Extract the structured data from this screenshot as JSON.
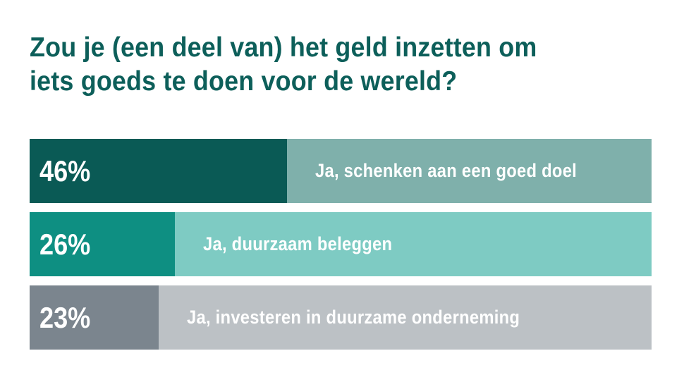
{
  "title_lines": [
    "Zou je (een deel van) het geld inzetten om",
    "iets goeds te doen voor de wereld?"
  ],
  "chart_data": {
    "type": "bar",
    "orientation": "horizontal",
    "title": "Zou je (een deel van) het geld inzetten om iets goeds te doen voor de wereld?",
    "categories": [
      "Ja, schenken aan een goed doel",
      "Ja, duurzaam beleggen",
      "Ja, investeren in duurzame onderneming"
    ],
    "values": [
      46,
      26,
      23
    ],
    "value_labels": [
      "46%",
      "26%",
      "23%"
    ],
    "unit": "%",
    "xlim": [
      0,
      100
    ],
    "grid": false,
    "legend": "none",
    "colors": [
      {
        "fill": "#0a5a55",
        "track": "#7fb0ab"
      },
      {
        "fill": "#0e8f82",
        "track": "#7ecbc3"
      },
      {
        "fill": "#7b858e",
        "track": "#bcc1c5"
      }
    ]
  }
}
